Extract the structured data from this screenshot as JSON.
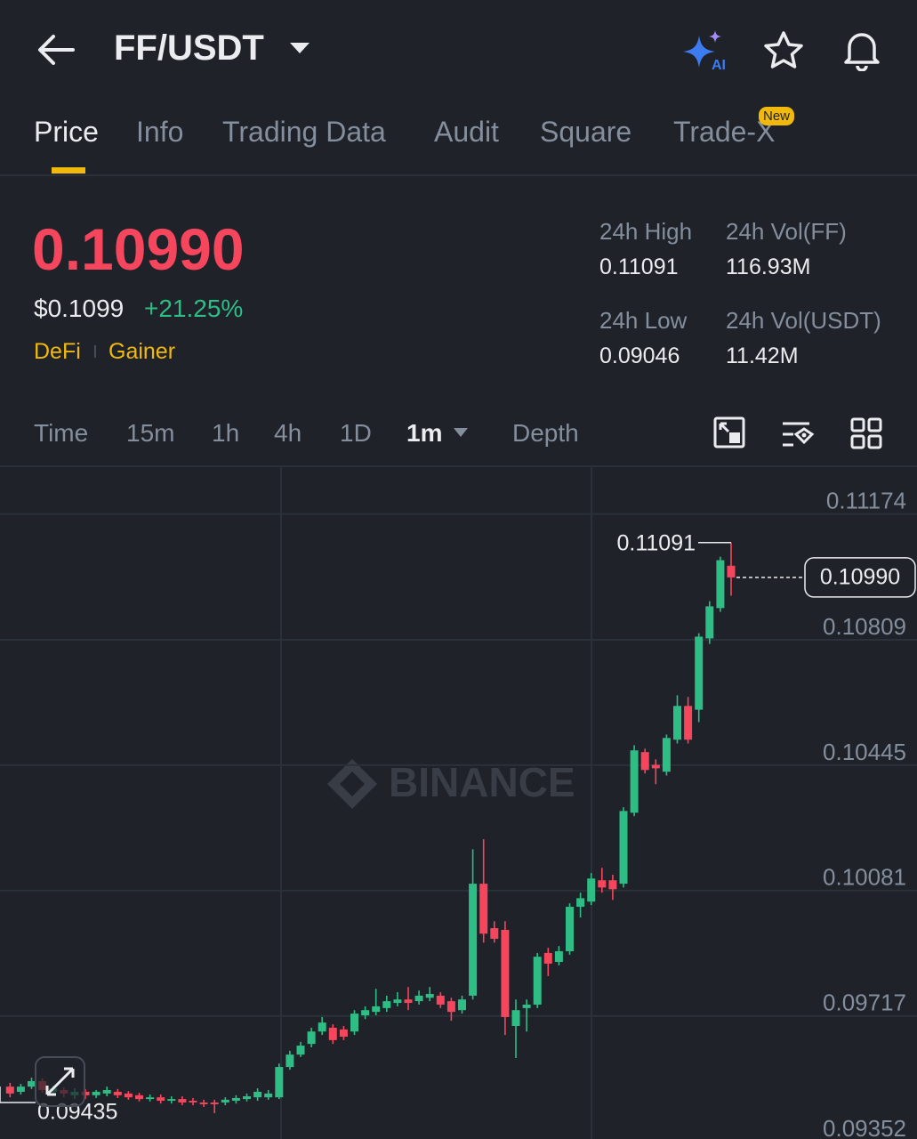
{
  "header": {
    "title": "FF/USDT"
  },
  "tabs": {
    "items": [
      "Price",
      "Info",
      "Trading Data",
      "Audit",
      "Square",
      "Trade-X"
    ],
    "badge": "New"
  },
  "ticker": {
    "price": "0.10990",
    "usd_price": "$0.1099",
    "change": "+21.25%",
    "tags": [
      "DeFi",
      "Gainer"
    ],
    "stats": [
      {
        "label": "24h High",
        "value": "0.11091"
      },
      {
        "label": "24h Vol(FF)",
        "value": "116.93M"
      },
      {
        "label": "24h Low",
        "value": "0.09046"
      },
      {
        "label": "24h Vol(USDT)",
        "value": "11.42M"
      }
    ]
  },
  "timeframes": [
    "Time",
    "15m",
    "1h",
    "4h",
    "1D",
    "1m",
    "Depth"
  ],
  "watermark": "BINANCE",
  "chart_data": {
    "type": "candlestick",
    "up_color": "#2ebd85",
    "down_color": "#f6465d",
    "grid": true,
    "ylim": [
      0.0936,
      0.1131
    ],
    "yticks": [
      0.11174,
      0.10809,
      0.10445,
      0.10081,
      0.09717,
      0.09352
    ],
    "open": [
      0.09512,
      0.09497,
      0.09512,
      0.09528,
      0.09497,
      0.09502,
      0.09487,
      0.09497,
      0.09487,
      0.09492,
      0.09497,
      0.09492,
      0.09487,
      0.09476,
      0.09481,
      0.09471,
      0.09476,
      0.09471,
      0.09466,
      0.09466,
      0.09466,
      0.09471,
      0.09476,
      0.09481,
      0.09481,
      0.09481,
      0.09569,
      0.09605,
      0.09636,
      0.09672,
      0.09683,
      0.09678,
      0.09672,
      0.09719,
      0.09729,
      0.0974,
      0.09755,
      0.09765,
      0.0976,
      0.0977,
      0.09776,
      0.0976,
      0.09734,
      0.09776,
      0.10101,
      0.09972,
      0.09967,
      0.09688,
      0.0974,
      0.0975,
      0.099,
      0.09874,
      0.09905,
      0.10034,
      0.10049,
      0.10111,
      0.10111,
      0.10101,
      0.10307,
      0.10483,
      0.10446,
      0.10426,
      0.10519,
      0.10617,
      0.10606,
      0.10813,
      0.10901,
      0.11024
    ],
    "high": [
      0.09523,
      0.0952,
      0.09538,
      0.09536,
      0.09515,
      0.0951,
      0.09507,
      0.09505,
      0.09502,
      0.09512,
      0.09505,
      0.09499,
      0.09494,
      0.09489,
      0.09489,
      0.09484,
      0.09484,
      0.09479,
      0.09474,
      0.09474,
      0.09481,
      0.09487,
      0.09492,
      0.09507,
      0.09502,
      0.09579,
      0.09616,
      0.09642,
      0.09683,
      0.09714,
      0.09693,
      0.09688,
      0.09734,
      0.09745,
      0.09796,
      0.09776,
      0.09786,
      0.09801,
      0.09791,
      0.09801,
      0.09786,
      0.0977,
      0.09776,
      0.10201,
      0.1023,
      0.09992,
      0.09992,
      0.09765,
      0.09765,
      0.099,
      0.09915,
      0.0992,
      0.10044,
      0.10075,
      0.10132,
      0.10147,
      0.10127,
      0.10323,
      0.10503,
      0.10493,
      0.10462,
      0.10534,
      0.10648,
      0.10643,
      0.10828,
      0.10921,
      0.1105,
      0.11091
    ],
    "low": [
      0.09481,
      0.09489,
      0.09505,
      0.09494,
      0.09484,
      0.09481,
      0.09476,
      0.09476,
      0.09479,
      0.09484,
      0.09479,
      0.09474,
      0.09469,
      0.09469,
      0.09463,
      0.09463,
      0.09458,
      0.09458,
      0.09453,
      0.09435,
      0.09458,
      0.09463,
      0.09469,
      0.09471,
      0.09474,
      0.09476,
      0.09561,
      0.09598,
      0.09626,
      0.09662,
      0.09636,
      0.09647,
      0.09662,
      0.09708,
      0.09719,
      0.09729,
      0.09745,
      0.09734,
      0.0975,
      0.0976,
      0.0974,
      0.09703,
      0.09724,
      0.09765,
      0.0993,
      0.0993,
      0.09662,
      0.09595,
      0.09672,
      0.0974,
      0.09833,
      0.09864,
      0.09895,
      0.10003,
      0.10039,
      0.10075,
      0.10054,
      0.1009,
      0.10297,
      0.10421,
      0.1039,
      0.10415,
      0.10508,
      0.10508,
      0.1057,
      0.10797,
      0.1089,
      0.10937
    ],
    "close": [
      0.09492,
      0.09512,
      0.09528,
      0.09502,
      0.09507,
      0.09492,
      0.09497,
      0.09487,
      0.09497,
      0.09502,
      0.09487,
      0.09481,
      0.09476,
      0.09481,
      0.09471,
      0.09476,
      0.09466,
      0.09466,
      0.09461,
      0.09461,
      0.09474,
      0.09479,
      0.09484,
      0.09497,
      0.09492,
      0.09569,
      0.09605,
      0.09631,
      0.09672,
      0.09698,
      0.09647,
      0.09657,
      0.09724,
      0.09734,
      0.09745,
      0.0976,
      0.09765,
      0.09755,
      0.09776,
      0.09781,
      0.0975,
      0.09729,
      0.09765,
      0.10101,
      0.09956,
      0.09941,
      0.09714,
      0.09734,
      0.0975,
      0.09889,
      0.09869,
      0.09905,
      0.10034,
      0.10059,
      0.10116,
      0.1009,
      0.10085,
      0.10312,
      0.10488,
      0.10431,
      0.10436,
      0.10524,
      0.10617,
      0.10519,
      0.10818,
      0.10906,
      0.1104,
      0.1099
    ],
    "high_marker": 0.11091,
    "low_marker": 0.09435,
    "last_price": {
      "value": 0.1099,
      "label": "0.10990"
    }
  }
}
